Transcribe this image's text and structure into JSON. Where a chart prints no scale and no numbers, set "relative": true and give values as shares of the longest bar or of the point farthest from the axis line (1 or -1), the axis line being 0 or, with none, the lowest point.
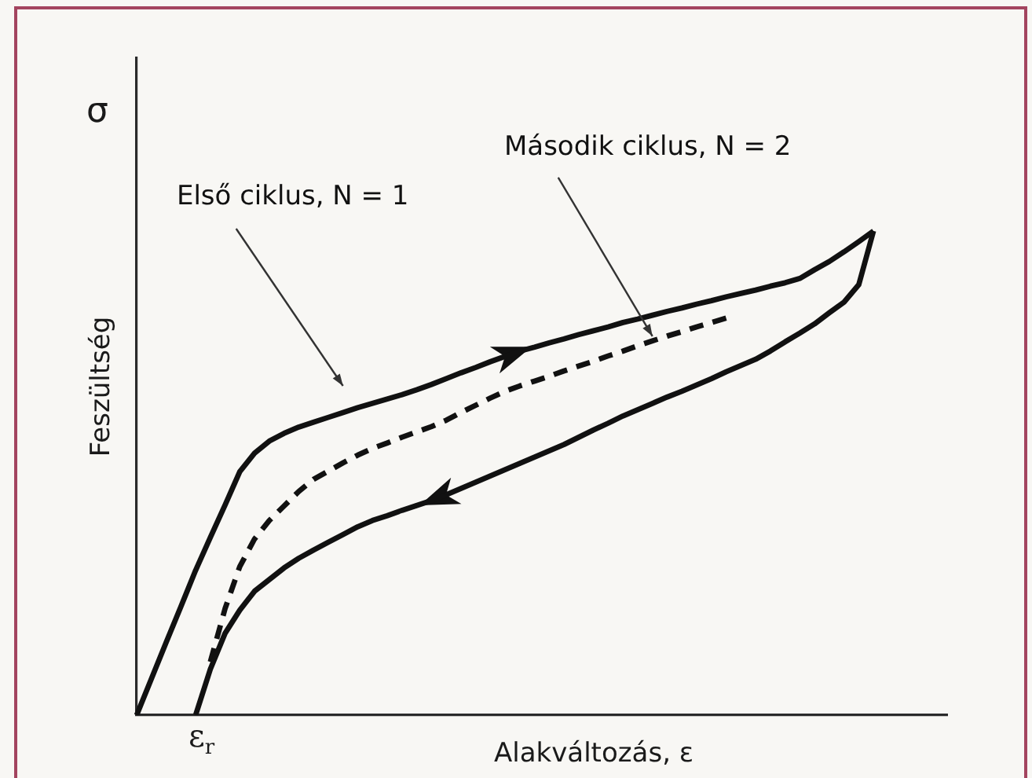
{
  "chart_data": {
    "type": "line",
    "relative": true,
    "xlabel": "Alakváltozás, ε",
    "ylabel": "Feszültség",
    "annotations": [
      "σ",
      "ε$_{r}$"
    ],
    "categories": [
      null,
      null,
      null,
      null,
      null,
      null,
      null,
      null,
      null,
      null,
      null,
      null,
      null,
      null,
      null,
      null,
      null,
      null,
      null,
      null,
      null,
      null,
      null,
      null,
      null,
      null,
      null,
      null,
      null,
      null,
      null,
      null,
      null,
      null,
      null,
      null,
      null,
      null,
      null,
      null,
      null,
      null,
      null,
      null,
      null,
      null,
      null,
      null,
      null,
      null,
      null,
      null,
      null,
      null,
      null,
      null
    ],
    "series": [
      {
        "name": "Első ciklus, N = 1",
        "color": "#111111",
        "values": [
          0,
          0.075,
          0.15,
          0.224,
          0.299,
          0.367,
          0.434,
          0.503,
          0.541,
          0.566,
          0.582,
          0.595,
          0.605,
          0.615,
          0.625,
          0.635,
          0.644,
          0.653,
          0.662,
          0.672,
          0.683,
          0.695,
          0.707,
          0.718,
          0.73,
          0.741,
          0.752,
          0.76,
          0.769,
          0.777,
          0.786,
          0.794,
          0.802,
          0.811,
          0.818,
          0.826,
          0.834,
          0.841,
          0.849,
          0.856,
          0.864,
          0.871,
          0.878,
          0.886,
          0.893,
          0.902,
          0.92,
          0.937,
          0.957,
          0.978,
          1,
          null,
          null,
          null,
          null,
          null
        ]
      },
      {
        "color": "#111111",
        "values": [
          null,
          null,
          null,
          null,
          0,
          0.095,
          0.169,
          0.217,
          0.256,
          0.28,
          0.304,
          0.324,
          0.341,
          0.357,
          0.373,
          0.389,
          0.402,
          0.412,
          0.423,
          0.433,
          0.443,
          0.455,
          0.468,
          0.481,
          0.494,
          0.507,
          0.52,
          0.533,
          0.546,
          0.559,
          0.574,
          0.589,
          0.603,
          0.618,
          0.631,
          0.644,
          0.657,
          0.669,
          0.682,
          0.695,
          0.709,
          0.722,
          0.735,
          0.752,
          0.771,
          0.789,
          0.808,
          0.831,
          0.853,
          0.889,
          1,
          null,
          null,
          null,
          null,
          null
        ]
      },
      {
        "name": "Második ciklus, N = 2",
        "color": "#111111",
        "line_style": "dashed",
        "values": [
          null,
          null,
          null,
          null,
          null,
          0.11,
          0.22,
          0.307,
          0.364,
          0.402,
          0.432,
          0.462,
          0.487,
          0.504,
          0.521,
          0.537,
          0.551,
          0.562,
          0.574,
          0.585,
          0.596,
          0.609,
          0.625,
          0.64,
          0.655,
          0.669,
          0.68,
          0.69,
          0.7,
          0.711,
          0.721,
          0.731,
          0.742,
          0.752,
          0.763,
          0.773,
          0.783,
          0.792,
          0.802,
          0.811,
          0.82,
          null,
          null,
          null,
          null,
          null,
          null,
          null,
          null,
          null,
          null,
          null,
          null,
          null,
          null,
          null
        ]
      }
    ]
  }
}
